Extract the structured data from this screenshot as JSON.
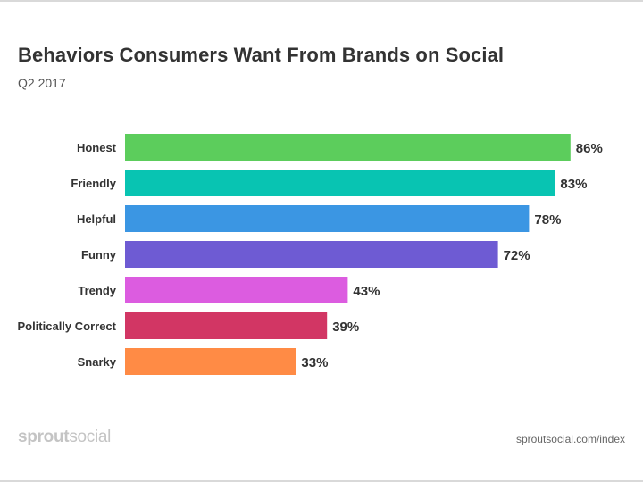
{
  "header": {
    "title": "Behaviors Consumers Want From Brands on Social",
    "subtitle": "Q2 2017"
  },
  "footer": {
    "brand_bold": "sprout",
    "brand_light": "social",
    "source": "sproutsocial.com/index"
  },
  "chart_data": {
    "type": "bar",
    "orientation": "horizontal",
    "title": "Behaviors Consumers Want From Brands on Social",
    "subtitle": "Q2 2017",
    "categories": [
      "Honest",
      "Friendly",
      "Helpful",
      "Funny",
      "Trendy",
      "Politically Correct",
      "Snarky"
    ],
    "values": [
      86,
      83,
      78,
      72,
      43,
      39,
      33
    ],
    "value_labels": [
      "86%",
      "83%",
      "78%",
      "72%",
      "43%",
      "39%",
      "33%"
    ],
    "colors": [
      "#5ccd5c",
      "#08c4b2",
      "#3b96e3",
      "#6e5bd3",
      "#dc5ce0",
      "#d23664",
      "#ff8b45"
    ],
    "xlim": [
      0,
      100
    ],
    "grid": false,
    "legend": "none"
  }
}
